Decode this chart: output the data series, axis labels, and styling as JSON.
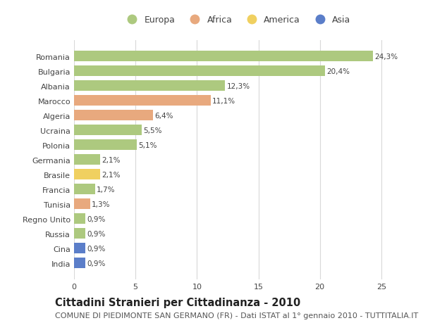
{
  "countries": [
    "Romania",
    "Bulgaria",
    "Albania",
    "Marocco",
    "Algeria",
    "Ucraina",
    "Polonia",
    "Germania",
    "Brasile",
    "Francia",
    "Tunisia",
    "Regno Unito",
    "Russia",
    "Cina",
    "India"
  ],
  "values": [
    24.3,
    20.4,
    12.3,
    11.1,
    6.4,
    5.5,
    5.1,
    2.1,
    2.1,
    1.7,
    1.3,
    0.9,
    0.9,
    0.9,
    0.9
  ],
  "labels": [
    "24,3%",
    "20,4%",
    "12,3%",
    "11,1%",
    "6,4%",
    "5,5%",
    "5,1%",
    "2,1%",
    "2,1%",
    "1,7%",
    "1,3%",
    "0,9%",
    "0,9%",
    "0,9%",
    "0,9%"
  ],
  "continents": [
    "Europa",
    "Europa",
    "Europa",
    "Africa",
    "Africa",
    "Europa",
    "Europa",
    "Europa",
    "America",
    "Europa",
    "Africa",
    "Europa",
    "Europa",
    "Asia",
    "Asia"
  ],
  "colors": {
    "Europa": "#adc97f",
    "Africa": "#e8a97e",
    "America": "#f0d060",
    "Asia": "#5b7ec9"
  },
  "xlim": [
    0,
    26.5
  ],
  "xticks": [
    0,
    5,
    10,
    15,
    20,
    25
  ],
  "background_color": "#ffffff",
  "grid_color": "#d8d8d8",
  "title": "Cittadini Stranieri per Cittadinanza - 2010",
  "subtitle": "COMUNE DI PIEDIMONTE SAN GERMANO (FR) - Dati ISTAT al 1° gennaio 2010 - TUTTITALIA.IT",
  "title_fontsize": 10.5,
  "subtitle_fontsize": 8,
  "label_fontsize": 7.5,
  "tick_fontsize": 8,
  "legend_entries": [
    "Europa",
    "Africa",
    "America",
    "Asia"
  ],
  "legend_colors": [
    "#adc97f",
    "#e8a97e",
    "#f0d060",
    "#5b7ec9"
  ]
}
